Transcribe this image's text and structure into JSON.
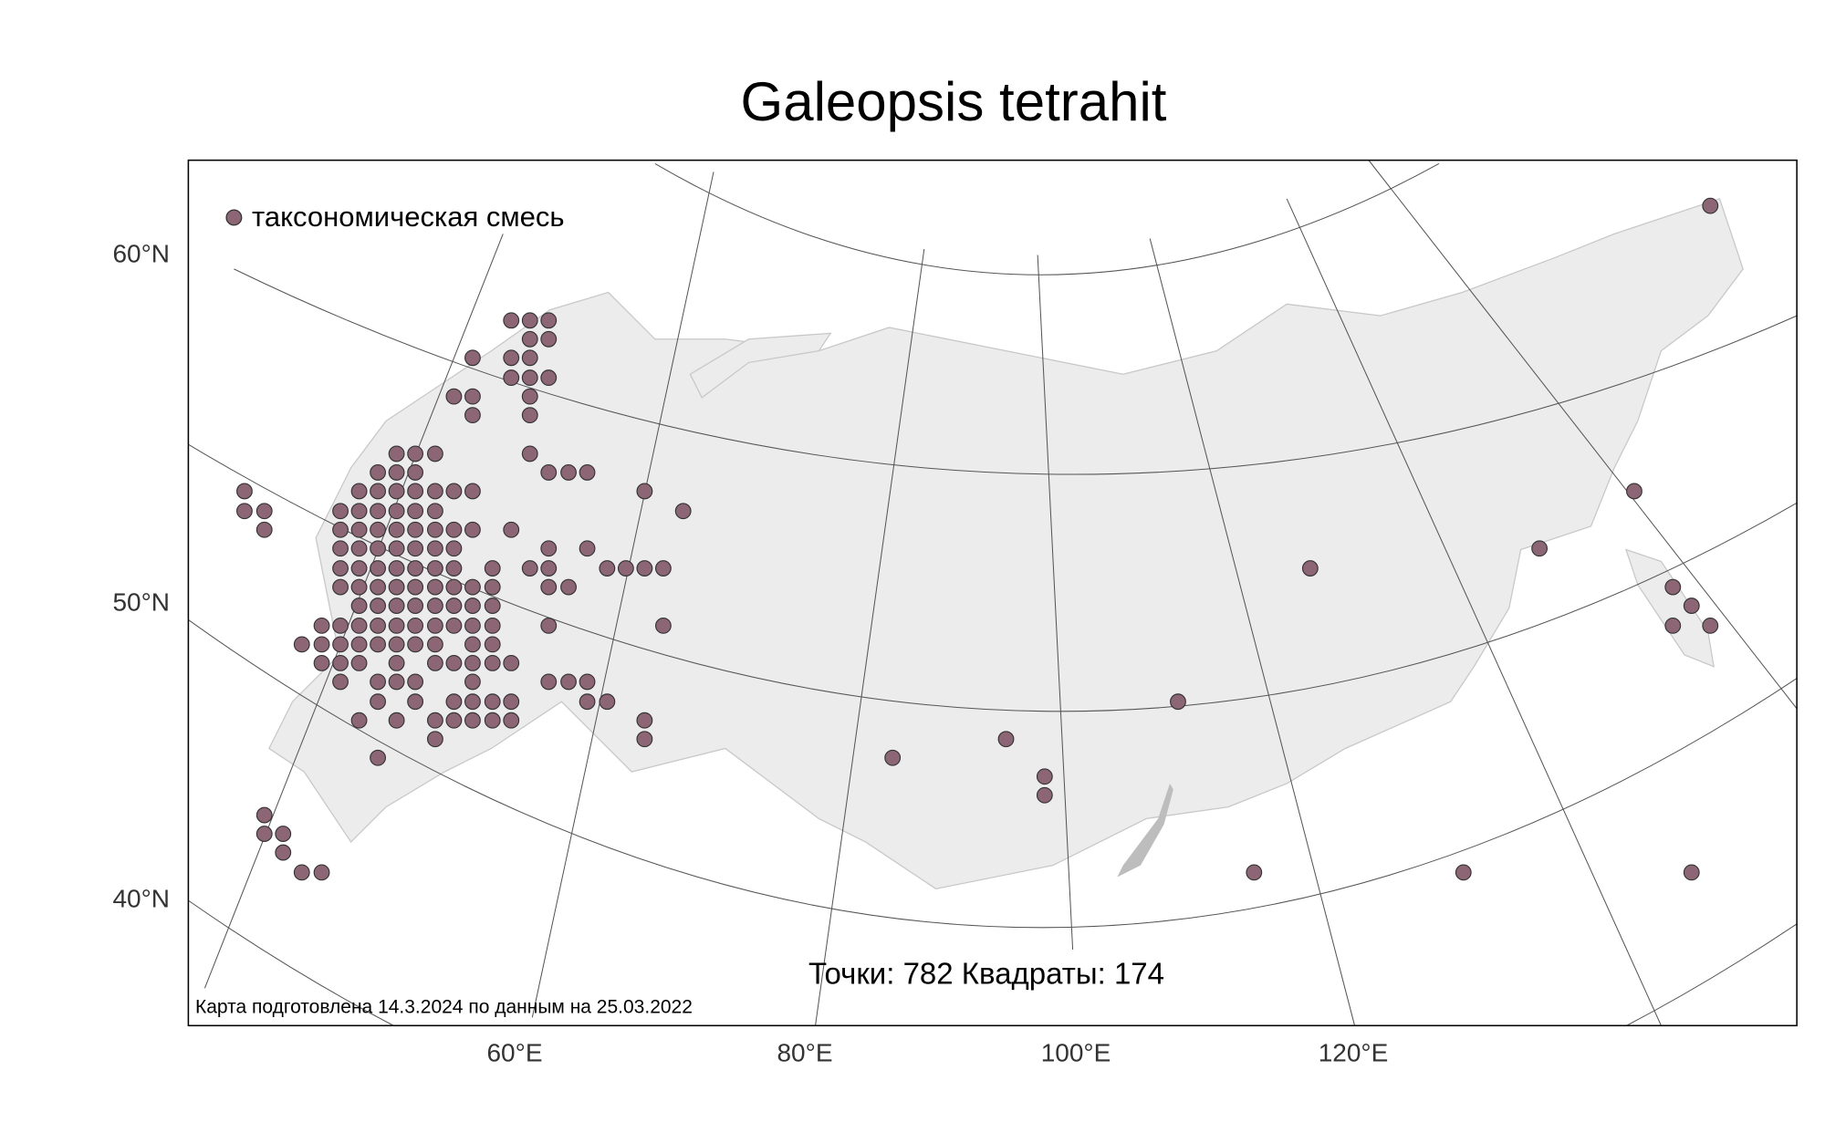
{
  "title": "Galeopsis tetrahit",
  "legend": {
    "label": "таксономическая смесь"
  },
  "axes": {
    "y_labels": [
      "60°N",
      "50°N",
      "40°N"
    ],
    "x_labels": [
      "60°E",
      "80°E",
      "100°E",
      "120°E"
    ]
  },
  "counts": "Точки: 782 Квадраты: 174",
  "footer": "Карта подготовлена 14.3.2024 по данным на 25.03.2022"
}
